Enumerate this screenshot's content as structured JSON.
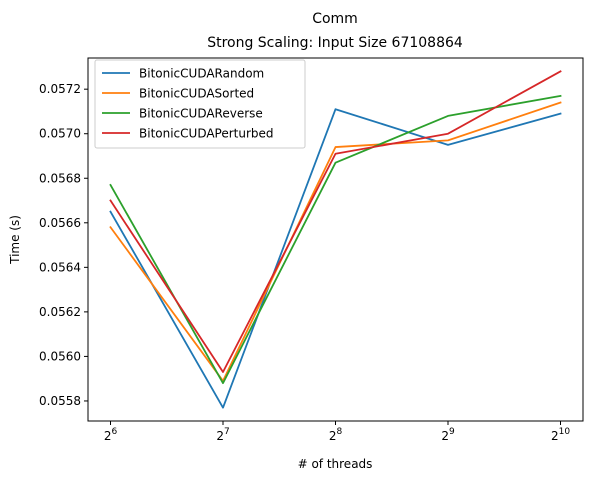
{
  "chart_data": {
    "type": "line",
    "title": "Comm",
    "subtitle": "Strong Scaling: Input Size 67108864",
    "xlabel": "# of threads",
    "ylabel": "Time (s)",
    "xscale": "log2",
    "x": [
      64,
      128,
      256,
      512,
      1024
    ],
    "x_ticks": [
      {
        "base": "2",
        "exp": "6"
      },
      {
        "base": "2",
        "exp": "7"
      },
      {
        "base": "2",
        "exp": "8"
      },
      {
        "base": "2",
        "exp": "9"
      },
      {
        "base": "2",
        "exp": "10"
      }
    ],
    "ylim": [
      0.05571,
      0.05734
    ],
    "y_ticks": [
      0.0558,
      0.056,
      0.0562,
      0.0564,
      0.0566,
      0.0568,
      0.057,
      0.0572
    ],
    "y_tick_labels": [
      "0.0558",
      "0.0560",
      "0.0562",
      "0.0564",
      "0.0566",
      "0.0568",
      "0.0570",
      "0.0572"
    ],
    "grid": false,
    "legend_position": "top-left",
    "series": [
      {
        "name": "BitonicCUDARandom",
        "color": "#1f77b4",
        "values": [
          0.05665,
          0.05577,
          0.05711,
          0.05695,
          0.05709
        ]
      },
      {
        "name": "BitonicCUDASorted",
        "color": "#ff7f0e",
        "values": [
          0.05658,
          0.05589,
          0.05694,
          0.05697,
          0.05714
        ]
      },
      {
        "name": "BitonicCUDAReverse",
        "color": "#2ca02c",
        "values": [
          0.05677,
          0.05588,
          0.05687,
          0.05708,
          0.05717
        ]
      },
      {
        "name": "BitonicCUDAPerturbed",
        "color": "#d62728",
        "values": [
          0.0567,
          0.05593,
          0.05691,
          0.057,
          0.05728
        ]
      }
    ]
  }
}
